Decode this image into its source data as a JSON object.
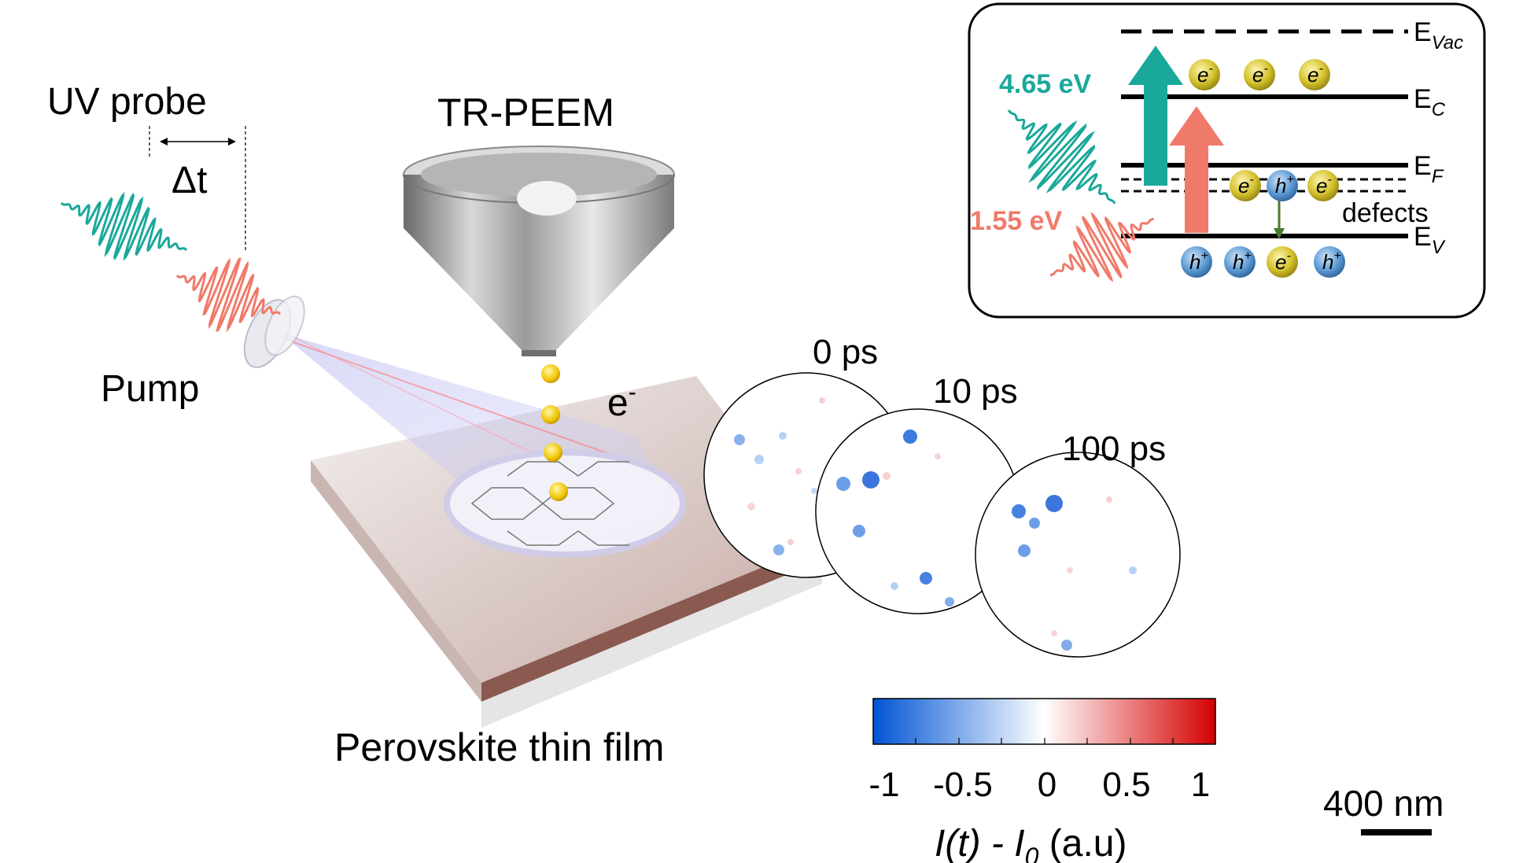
{
  "left": {
    "title": "TR-PEEM",
    "uv_probe": "UV probe",
    "delta_t": "Δt",
    "pump": "Pump",
    "electron": "e",
    "electron_sup": "-",
    "sample": "Perovskite thin film"
  },
  "band_diagram": {
    "levels": [
      {
        "name": "E",
        "sub": "Vac"
      },
      {
        "name": "E",
        "sub": "C"
      },
      {
        "name": "E",
        "sub": "F"
      },
      {
        "name": "E",
        "sub": "V"
      }
    ],
    "defects_label": "defects",
    "probe_energy": "4.65 eV",
    "pump_energy": "1.55 eV",
    "electron_symbol": "e",
    "electron_sup": "-",
    "hole_symbol": "h",
    "hole_sup": "+"
  },
  "maps": {
    "time_labels": [
      "0 ps",
      "10 ps",
      "100 ps"
    ],
    "colorbar": {
      "ticks": [
        "-1",
        "-0.5",
        "0",
        "0.5",
        "1"
      ],
      "label_main": "I(t) - I",
      "label_sub": "0",
      "label_unit": " (a.u)",
      "colors": [
        "#0055d4",
        "#ffffff",
        "#d40000"
      ]
    },
    "scalebar": "400 nm"
  },
  "colors": {
    "teal": "#1aa89a",
    "salmon": "#f07a6a",
    "electron": "#c8b628",
    "hole": "#4f8fcf",
    "arrow_green": "#4a7a2a"
  }
}
